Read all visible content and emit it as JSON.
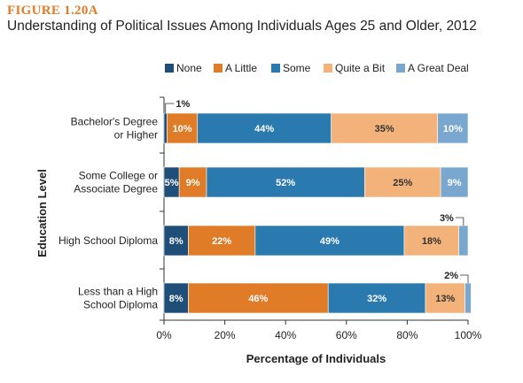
{
  "figure_label": "FIGURE 1.20A",
  "title": "Understanding of Political Issues Among Individuals Ages 25 and Older, 2012",
  "chart_data": {
    "type": "bar",
    "orientation": "horizontal",
    "stacked": true,
    "categories": [
      [
        "Bachelor's Degree",
        "or Higher"
      ],
      [
        "Some College or",
        "Associate Degree"
      ],
      [
        "High School Diploma"
      ],
      [
        "Less than a High",
        "School Diploma"
      ]
    ],
    "series": [
      {
        "name": "None",
        "color": "#1f4e79",
        "values": [
          1,
          5,
          8,
          8
        ],
        "labels": [
          "1%",
          "5%",
          "8%",
          "8%"
        ]
      },
      {
        "name": "A Little",
        "color": "#e07b27",
        "values": [
          10,
          9,
          22,
          46
        ],
        "labels": [
          "10%",
          "9%",
          "22%",
          "46%"
        ]
      },
      {
        "name": "Some",
        "color": "#2a7ab0",
        "values": [
          44,
          52,
          49,
          32
        ],
        "labels": [
          "44%",
          "52%",
          "49%",
          "32%"
        ]
      },
      {
        "name": "Quite a Bit",
        "color": "#f2b27a",
        "values": [
          35,
          25,
          18,
          13
        ],
        "labels": [
          "35%",
          "25%",
          "18%",
          "13%"
        ]
      },
      {
        "name": "A Great Deal",
        "color": "#7aa7cf",
        "values": [
          10,
          9,
          3,
          2
        ],
        "labels": [
          "10%",
          "9%",
          "3%",
          "2%"
        ]
      }
    ],
    "xlabel": "Percentage of Individuals",
    "ylabel": "Education Level",
    "xlim": [
      0,
      100
    ],
    "xticks": [
      "0%",
      "20%",
      "40%",
      "60%",
      "80%",
      "100%"
    ],
    "legend_position": "top"
  }
}
